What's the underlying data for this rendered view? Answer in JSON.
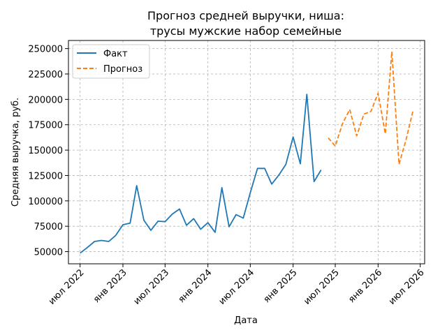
{
  "chart_data": {
    "type": "line",
    "title": [
      "Прогноз средней выручки, ниша:",
      "трусы мужские набор семейные"
    ],
    "xlabel": "Дата",
    "ylabel": "Средняя выручка, руб.",
    "xlim": [
      "2022-05-12",
      "2026-07-20"
    ],
    "ylim": [
      38000,
      258000
    ],
    "grid": true,
    "legend_position": "top-left",
    "x_ticks": [
      {
        "date": "2022-07-01",
        "label": "июл 2022"
      },
      {
        "date": "2023-01-01",
        "label": "янв 2023"
      },
      {
        "date": "2023-07-01",
        "label": "июл 2023"
      },
      {
        "date": "2024-01-01",
        "label": "янв 2024"
      },
      {
        "date": "2024-07-01",
        "label": "июл 2024"
      },
      {
        "date": "2025-01-01",
        "label": "янв 2025"
      },
      {
        "date": "2025-07-01",
        "label": "июл 2025"
      },
      {
        "date": "2026-01-01",
        "label": "янв 2026"
      },
      {
        "date": "2026-07-01",
        "label": "июл 2026"
      }
    ],
    "y_ticks": [
      {
        "value": 50000,
        "label": "50000"
      },
      {
        "value": 75000,
        "label": "75000"
      },
      {
        "value": 100000,
        "label": "100000"
      },
      {
        "value": 125000,
        "label": "125000"
      },
      {
        "value": 150000,
        "label": "150000"
      },
      {
        "value": 175000,
        "label": "175000"
      },
      {
        "value": 200000,
        "label": "200000"
      },
      {
        "value": 225000,
        "label": "225000"
      },
      {
        "value": 250000,
        "label": "250000"
      }
    ],
    "series": [
      {
        "name": "Факт",
        "color": "#1f77b4",
        "style": "solid",
        "x": [
          "2022-07-01",
          "2022-08-01",
          "2022-09-01",
          "2022-10-01",
          "2022-11-01",
          "2022-12-01",
          "2023-01-01",
          "2023-02-01",
          "2023-03-01",
          "2023-04-01",
          "2023-05-01",
          "2023-06-01",
          "2023-07-01",
          "2023-08-01",
          "2023-09-01",
          "2023-10-01",
          "2023-11-01",
          "2023-12-01",
          "2024-01-01",
          "2024-02-01",
          "2024-03-01",
          "2024-04-01",
          "2024-05-01",
          "2024-06-01",
          "2024-07-01",
          "2024-08-01",
          "2024-09-01",
          "2024-10-01",
          "2024-11-01",
          "2024-12-01",
          "2025-01-01",
          "2025-02-01",
          "2025-03-01",
          "2025-04-01",
          "2025-05-01"
        ],
        "y": [
          48500,
          54000,
          60000,
          61000,
          60000,
          66000,
          76500,
          78000,
          115000,
          81000,
          71000,
          80000,
          79500,
          87000,
          92000,
          76000,
          82500,
          72000,
          78500,
          69000,
          113000,
          74500,
          86500,
          83000,
          108000,
          132000,
          132000,
          116500,
          125500,
          136000,
          163000,
          136500,
          205000,
          119000,
          130500
        ]
      },
      {
        "name": "Прогноз",
        "color": "#ff7f0e",
        "style": "dashed",
        "x": [
          "2025-06-01",
          "2025-07-01",
          "2025-08-01",
          "2025-09-01",
          "2025-10-01",
          "2025-11-01",
          "2025-12-01",
          "2026-01-01",
          "2026-02-01",
          "2026-03-01",
          "2026-04-01",
          "2026-05-01",
          "2026-06-01"
        ],
        "y": [
          162000,
          154000,
          176000,
          190000,
          164000,
          185500,
          188000,
          206000,
          166000,
          247000,
          136000,
          160000,
          190000
        ]
      }
    ]
  }
}
